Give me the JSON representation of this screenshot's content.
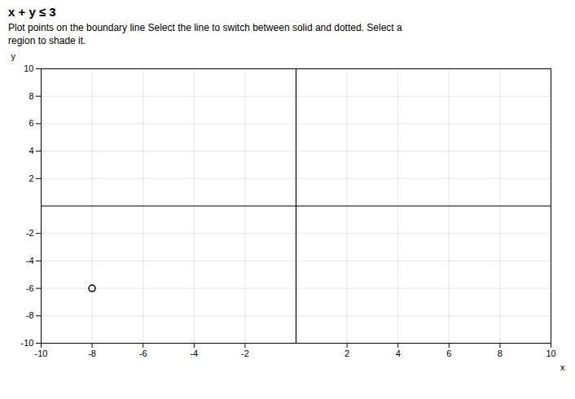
{
  "chart_data": {
    "type": "scatter",
    "title": "x + y ≤ 3",
    "subtitle": "Plot points on the boundary line  Select the line to switch between solid and dotted. Select a\nregion to shade it.",
    "x_label": "x",
    "y_label": "y",
    "x": [
      -8
    ],
    "values": [
      -6
    ],
    "marker": "circle",
    "xlim": [
      -10,
      10
    ],
    "ylim": [
      -10,
      10
    ],
    "xticks": [
      -10,
      -8,
      -6,
      -4,
      -2,
      2,
      4,
      6,
      8,
      10
    ],
    "yticks": [
      -10,
      -8,
      -6,
      -4,
      -2,
      2,
      4,
      6,
      8,
      10
    ],
    "grid": true
  }
}
